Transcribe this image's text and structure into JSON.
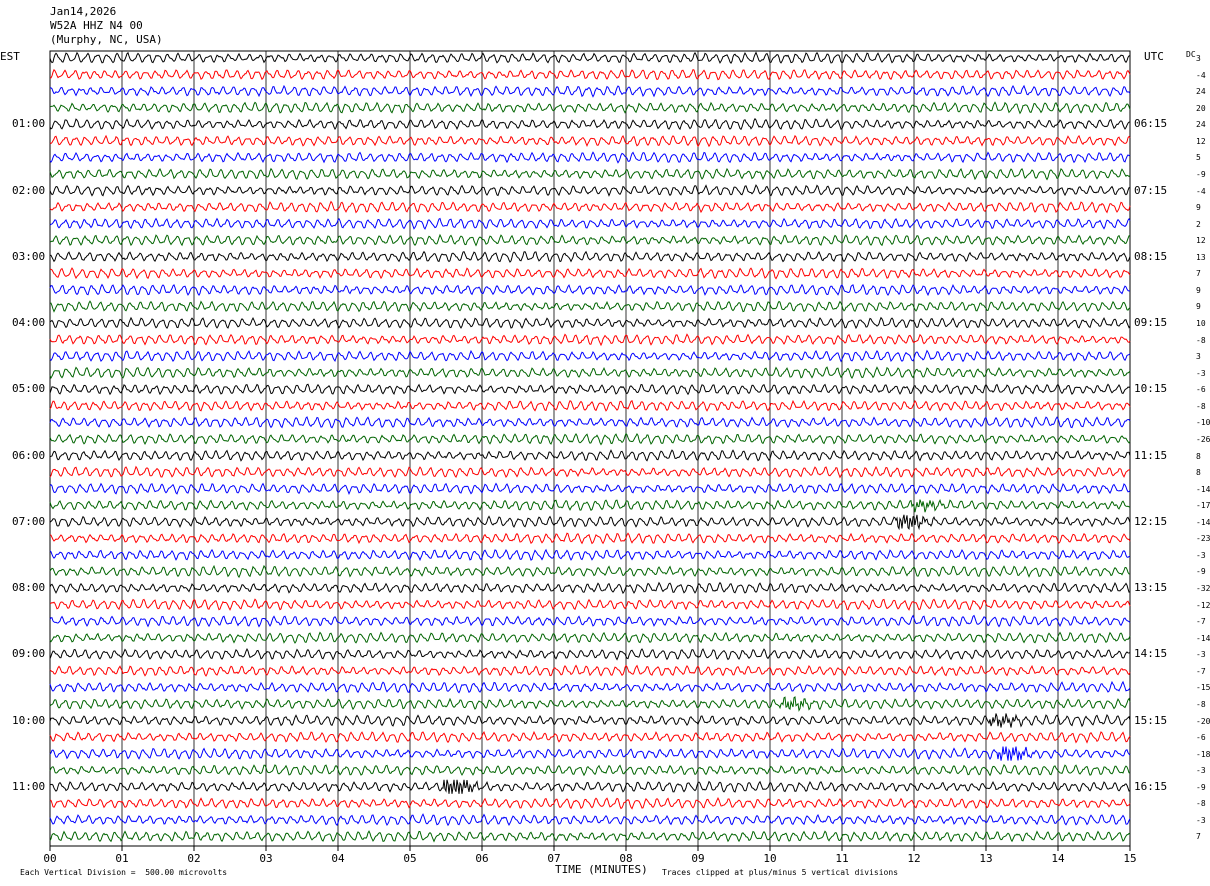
{
  "header": {
    "date": "Jan14,2026",
    "station": "W52A HHZ N4 00",
    "location": "(Murphy, NC, USA)"
  },
  "left_axis_label": "EST",
  "right_axis_label": "UTC",
  "dc_label": "DC",
  "footer": {
    "x_axis_title": "TIME (MINUTES)",
    "scale_note": "Each Vertical Division =  500.00 microvolts",
    "clip_note": "Traces clipped at plus/minus 5 vertical divisions"
  },
  "chart_data": {
    "type": "line",
    "title": "W52A HHZ N4 00",
    "xlabel": "TIME (MINUTES)",
    "x_ticks": [
      "00",
      "01",
      "02",
      "03",
      "04",
      "05",
      "06",
      "07",
      "08",
      "09",
      "10",
      "11",
      "12",
      "13",
      "14",
      "15"
    ],
    "xlim": [
      0,
      15
    ],
    "rows_per_hour": 4,
    "trace_colors": [
      "#000000",
      "#ff0000",
      "#0000ff",
      "#006400"
    ],
    "est_hour_labels": [
      "01:00",
      "02:00",
      "03:00",
      "04:00",
      "05:00",
      "06:00",
      "07:00",
      "08:00",
      "09:00",
      "10:00",
      "11:00"
    ],
    "utc_hour_labels": [
      "06:15",
      "07:15",
      "08:15",
      "09:15",
      "10:15",
      "11:15",
      "12:15",
      "13:15",
      "14:15",
      "15:15",
      "16:15"
    ],
    "dc_offsets": [
      3,
      -4,
      24,
      20,
      24,
      12,
      5,
      -9,
      -4,
      9,
      2,
      12,
      13,
      7,
      9,
      9,
      10,
      -8,
      3,
      -3,
      -6,
      -8,
      -10,
      -26,
      8,
      8,
      -14,
      -17,
      -14,
      -23,
      -3,
      -9,
      -32,
      -12,
      -7,
      -14,
      -3,
      -7,
      -15,
      -8,
      -20,
      -6,
      -18,
      -3,
      -9,
      -8,
      -3,
      7
    ],
    "events": [
      {
        "row": 44,
        "minute": 5.6,
        "strength": 3.0
      },
      {
        "row": 42,
        "minute": 13.3,
        "strength": 2.2
      },
      {
        "row": 40,
        "minute": 13.2,
        "strength": 1.5
      },
      {
        "row": 39,
        "minute": 10.3,
        "strength": 1.4
      },
      {
        "row": 28,
        "minute": 11.9,
        "strength": 2.0
      },
      {
        "row": 27,
        "minute": 12.1,
        "strength": 1.2
      }
    ]
  }
}
